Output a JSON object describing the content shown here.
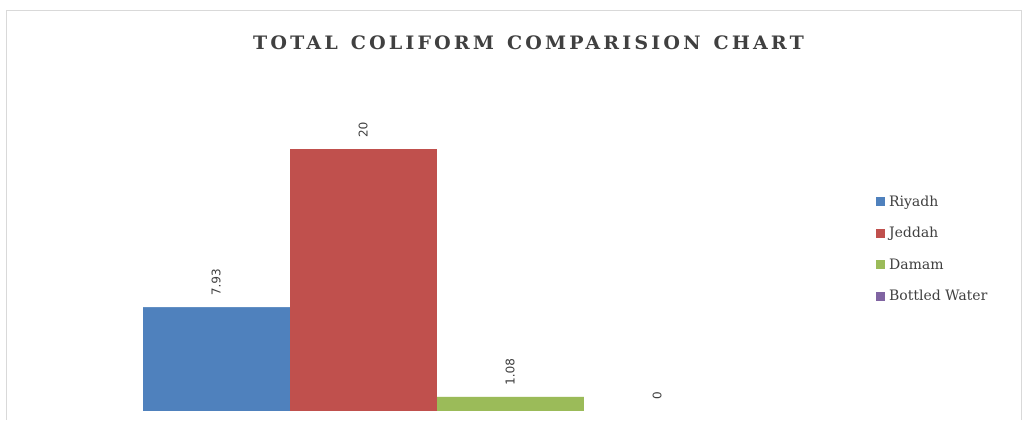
{
  "chart_data": {
    "type": "bar",
    "title": "TOTAL COLIFORM COMPARISION CHART",
    "xlabel": "",
    "ylabel": "",
    "ylim": [
      0,
      20
    ],
    "grid": false,
    "legend_position": "right",
    "categories": [
      ""
    ],
    "series": [
      {
        "name": "Riyadh",
        "values": [
          7.93
        ],
        "label": "7.93",
        "color": "#4f81bd"
      },
      {
        "name": "Jeddah",
        "values": [
          20
        ],
        "label": "20",
        "color": "#c0504d"
      },
      {
        "name": "Damam",
        "values": [
          1.08
        ],
        "label": "1.08",
        "color": "#9bbb59"
      },
      {
        "name": "Bottled Water",
        "values": [
          0
        ],
        "label": "0",
        "color": "#8064a2"
      }
    ]
  }
}
